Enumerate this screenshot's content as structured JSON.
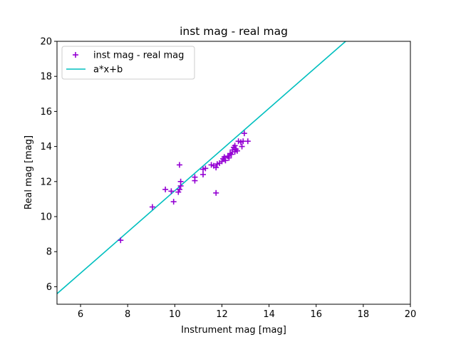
{
  "chart_data": {
    "type": "scatter",
    "title": "inst mag - real mag",
    "xlabel": "Instrument mag [mag]",
    "ylabel": "Real mag [mag]",
    "xlim": [
      5,
      20
    ],
    "ylim": [
      5,
      20
    ],
    "xticks": [
      6,
      8,
      10,
      12,
      14,
      16,
      18,
      20
    ],
    "yticks": [
      6,
      8,
      10,
      12,
      14,
      16,
      18,
      20
    ],
    "grid": false,
    "legend_position": "upper-left",
    "colors": {
      "points": "#9400d3",
      "fit": "#00bfbf"
    },
    "series": [
      {
        "name": "inst mag - real mag",
        "kind": "scatter",
        "marker": "+",
        "points": [
          [
            7.7,
            8.65
          ],
          [
            9.05,
            10.55
          ],
          [
            9.6,
            11.55
          ],
          [
            9.95,
            10.85
          ],
          [
            9.85,
            11.45
          ],
          [
            10.15,
            11.4
          ],
          [
            10.2,
            11.55
          ],
          [
            10.25,
            11.75
          ],
          [
            10.25,
            12.0
          ],
          [
            10.2,
            12.95
          ],
          [
            10.85,
            12.05
          ],
          [
            10.85,
            12.25
          ],
          [
            11.2,
            12.4
          ],
          [
            11.2,
            12.7
          ],
          [
            11.3,
            12.75
          ],
          [
            11.55,
            12.95
          ],
          [
            11.65,
            12.9
          ],
          [
            11.75,
            12.8
          ],
          [
            11.75,
            11.35
          ],
          [
            11.8,
            13.0
          ],
          [
            11.9,
            13.05
          ],
          [
            12.0,
            13.15
          ],
          [
            12.05,
            13.3
          ],
          [
            12.1,
            13.4
          ],
          [
            12.15,
            13.2
          ],
          [
            12.25,
            13.45
          ],
          [
            12.3,
            13.35
          ],
          [
            12.35,
            13.6
          ],
          [
            12.4,
            13.55
          ],
          [
            12.45,
            13.8
          ],
          [
            12.5,
            13.95
          ],
          [
            12.55,
            13.7
          ],
          [
            12.55,
            14.05
          ],
          [
            12.6,
            13.85
          ],
          [
            12.65,
            13.75
          ],
          [
            12.7,
            14.3
          ],
          [
            12.8,
            14.25
          ],
          [
            12.85,
            14.0
          ],
          [
            12.9,
            14.3
          ],
          [
            12.95,
            14.75
          ],
          [
            13.1,
            14.3
          ]
        ]
      },
      {
        "name": "a*x+b",
        "kind": "line",
        "points": [
          [
            5,
            5.6
          ],
          [
            17.25,
            20.0
          ]
        ]
      }
    ]
  }
}
